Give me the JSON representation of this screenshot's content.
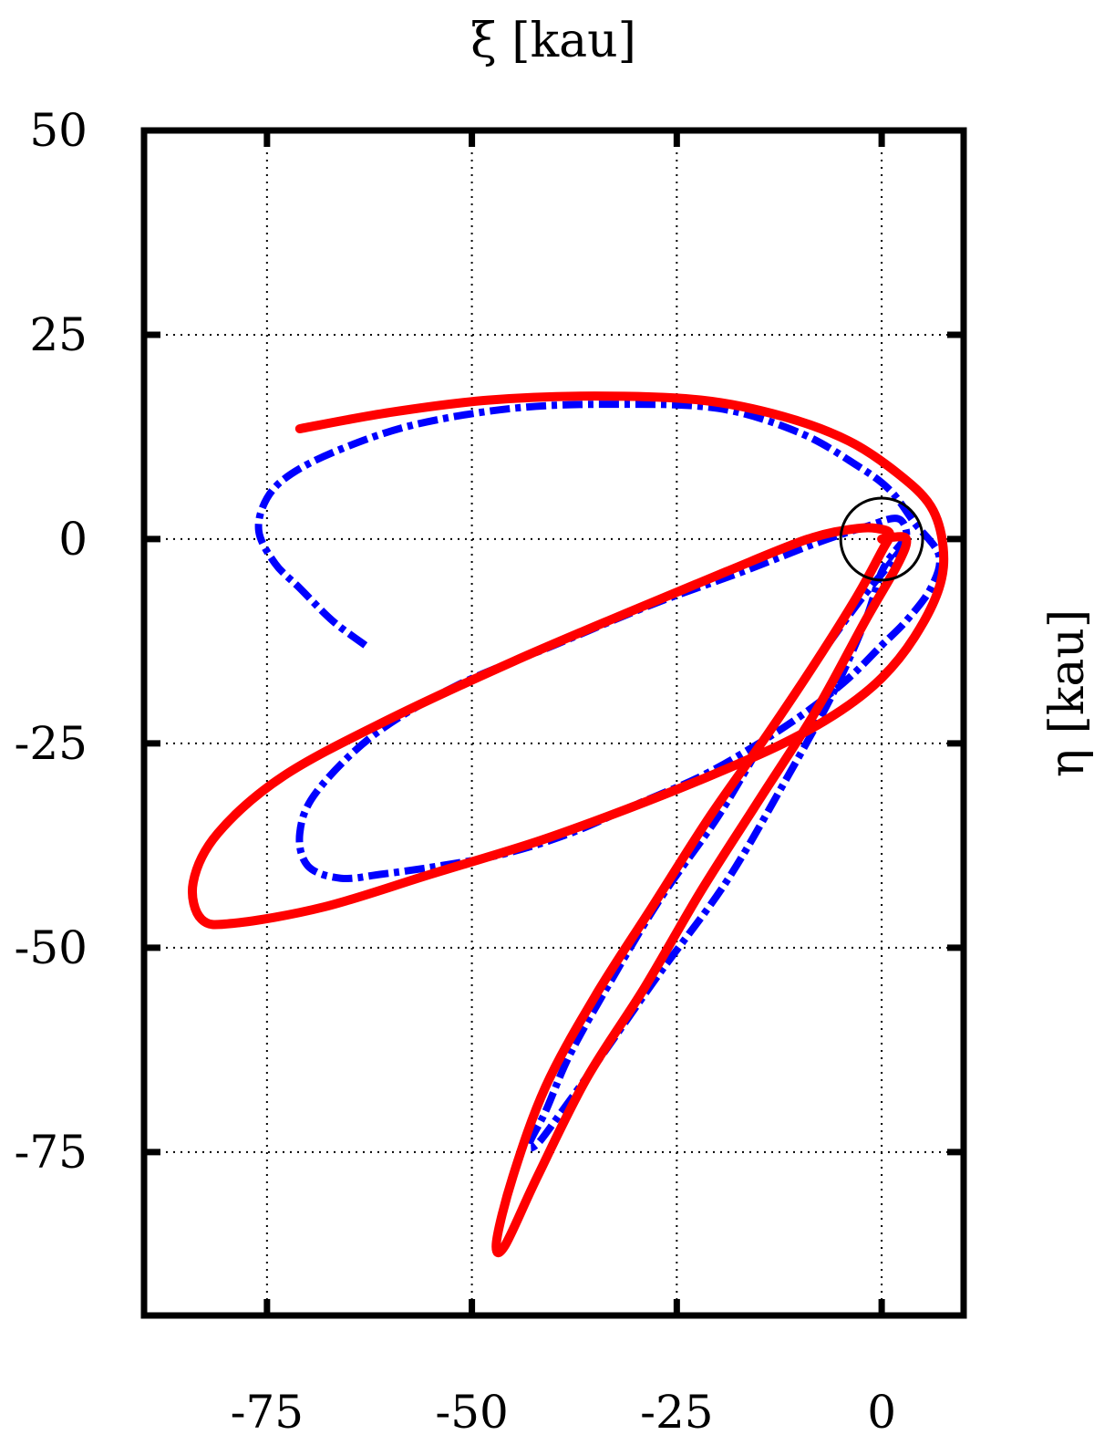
{
  "chart_data": {
    "type": "line",
    "xlabel": "ξ [kau]",
    "ylabel": "η [kau]",
    "xlim": [
      -90,
      10
    ],
    "ylim": [
      -95,
      50
    ],
    "xticks": [
      -75,
      -50,
      -25,
      0
    ],
    "yticks": [
      50,
      25,
      0,
      -25,
      -50,
      -75
    ],
    "x_axis_position": "top-title, bottom-ticks",
    "y_axis_position": "left-ticks, right-title",
    "grid": true,
    "marker": {
      "type": "circle",
      "x": 0,
      "y": 0,
      "radius": 5,
      "color": "#000000"
    },
    "series": [
      {
        "style": "dash-dot",
        "color": "#0000ff",
        "x": [
          -63,
          -67,
          -71,
          -74,
          -76,
          -75,
          -72,
          -66,
          -57,
          -45,
          -33,
          -20,
          -10,
          -3,
          1,
          4,
          7,
          6,
          3,
          0,
          -4,
          -9,
          -15,
          -22,
          -30,
          -38,
          -46,
          -54,
          -61,
          -66,
          -70,
          -71,
          -69,
          -62,
          -52,
          -40,
          -28,
          -17,
          -8,
          -2,
          2,
          3,
          1,
          -3,
          -8,
          -14,
          -20,
          -27,
          -33,
          -38,
          -41,
          -43,
          -42,
          -39,
          -34,
          -27,
          -19,
          -12,
          -6,
          -2,
          0,
          2,
          3
        ],
        "y": [
          -13,
          -10,
          -6,
          -3,
          1,
          5,
          8,
          11,
          14,
          16,
          16.5,
          16,
          13,
          9,
          6,
          2,
          -2,
          -6,
          -10,
          -13,
          -17,
          -21,
          -25,
          -29,
          -32.5,
          -36,
          -38.5,
          -40,
          -41,
          -41.5,
          -40,
          -36,
          -31,
          -24,
          -18,
          -13,
          -8,
          -4,
          -0.5,
          1.5,
          2.5,
          0,
          -3,
          -8,
          -15,
          -24,
          -34,
          -44,
          -54,
          -63,
          -70,
          -74,
          -74,
          -70,
          -63,
          -53,
          -42,
          -30,
          -19,
          -10,
          -4,
          -1,
          0
        ]
      },
      {
        "style": "solid",
        "color": "#ff0000",
        "x": [
          -71,
          -60,
          -48,
          -35,
          -22,
          -12,
          -4,
          2,
          6,
          7.5,
          7,
          4,
          0,
          -5,
          -12,
          -21,
          -31,
          -42,
          -55,
          -68,
          -79,
          -83,
          -84,
          -81,
          -73,
          -60,
          -45,
          -31,
          -19,
          -9,
          -3,
          0,
          1,
          0,
          -3,
          -8,
          -14,
          -21,
          -28,
          -35,
          -41,
          -45,
          -47,
          -46,
          -42,
          -36,
          -29,
          -22,
          -15,
          -8,
          -2,
          2,
          3,
          1,
          0
        ],
        "y": [
          13.5,
          15.5,
          17,
          17.5,
          17,
          15,
          12,
          8,
          4,
          -1,
          -6,
          -12,
          -17,
          -21,
          -25,
          -29,
          -33,
          -37,
          -41,
          -45,
          -47,
          -46.5,
          -42,
          -36,
          -29,
          -22,
          -15,
          -9,
          -4,
          0,
          1.3,
          1.2,
          0.5,
          -1.5,
          -7,
          -15,
          -24,
          -34,
          -45,
          -56,
          -67,
          -78,
          -86,
          -86.5,
          -78,
          -66,
          -55,
          -43,
          -32,
          -21,
          -10,
          -3,
          0,
          0.2,
          0
        ]
      }
    ]
  }
}
